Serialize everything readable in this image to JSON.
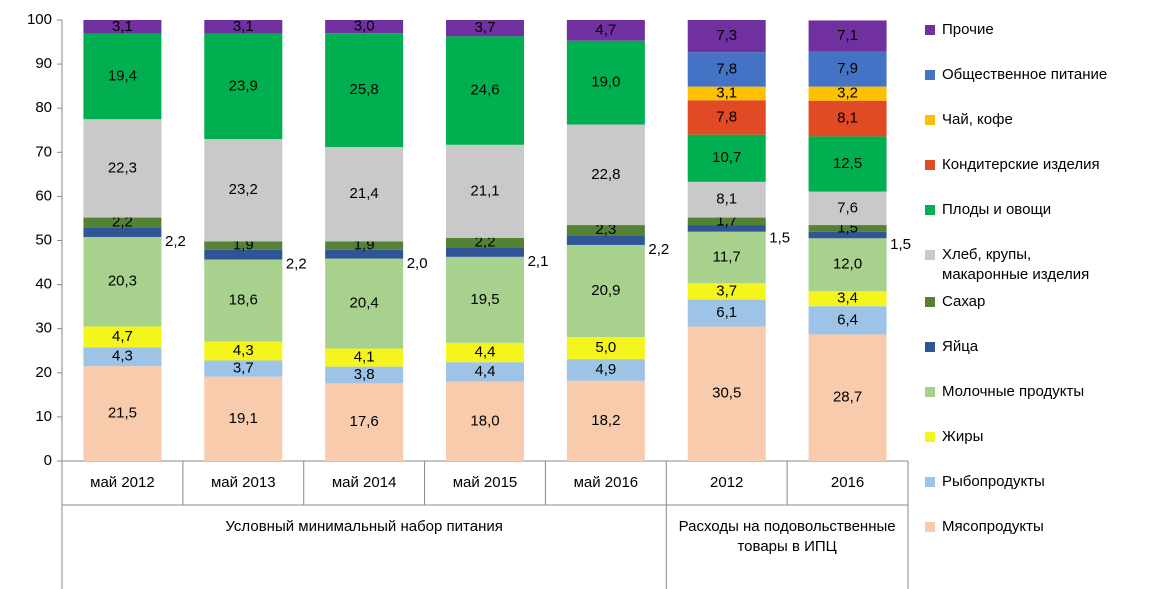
{
  "chart_data": {
    "type": "stacked-bar",
    "categories": [
      "май 2012",
      "май 2013",
      "май 2014",
      "май 2015",
      "май 2016",
      "2012",
      "2016"
    ],
    "groups": [
      "Условный минимальный набор питания",
      "Расходы на подовольственные товары в ИПЦ"
    ],
    "ylim": [
      0,
      100
    ],
    "yticks": [
      0,
      10,
      20,
      30,
      40,
      50,
      60,
      70,
      80,
      90,
      100
    ],
    "series": [
      {
        "name": "Мясопродукты",
        "color": "#f8cbad",
        "values": [
          21.5,
          19.1,
          17.6,
          18.0,
          18.2,
          30.5,
          28.7
        ],
        "value_labels": [
          "21,5",
          "19,1",
          "17,6",
          "18,0",
          "18,2",
          "30,5",
          "28,7"
        ]
      },
      {
        "name": "Рыбопродукты",
        "color": "#9dc3e6",
        "values": [
          4.3,
          3.7,
          3.8,
          4.4,
          4.9,
          6.1,
          6.4
        ],
        "value_labels": [
          "4,3",
          "3,7",
          "3,8",
          "4,4",
          "4,9",
          "6,1",
          "6,4"
        ]
      },
      {
        "name": "Жиры",
        "color": "#f5f51e",
        "values": [
          4.7,
          4.3,
          4.1,
          4.4,
          5.0,
          3.7,
          3.4
        ],
        "value_labels": [
          "4,7",
          "4,3",
          "4,1",
          "4,4",
          "5,0",
          "3,7",
          "3,4"
        ]
      },
      {
        "name": "Молочные продукты",
        "color": "#a9d18e",
        "values": [
          20.3,
          18.6,
          20.4,
          19.5,
          20.9,
          11.7,
          12.0
        ],
        "value_labels": [
          "20,3",
          "18,6",
          "20,4",
          "19,5",
          "20,9",
          "11,7",
          "12,0"
        ]
      },
      {
        "name": "Яйца",
        "color": "#2f5597",
        "values": [
          2.2,
          2.2,
          2.0,
          2.1,
          2.2,
          1.5,
          1.5
        ],
        "value_labels": [
          "2,2",
          "2,2",
          "2,0",
          "2,1",
          "2,2",
          "1,5",
          "1,5"
        ]
      },
      {
        "name": "Сахар",
        "color": "#548235",
        "values": [
          2.2,
          1.9,
          1.9,
          2.2,
          2.3,
          1.7,
          1.5
        ],
        "value_labels": [
          "2,2",
          "1,9",
          "1,9",
          "2,2",
          "2,3",
          "1,7",
          "1,5"
        ]
      },
      {
        "name": "Хлеб, крупы, макаронные изделия",
        "color": "#c9c9c9",
        "values": [
          22.3,
          23.2,
          21.4,
          21.1,
          22.8,
          8.1,
          7.6
        ],
        "value_labels": [
          "22,3",
          "23,2",
          "21,4",
          "21,1",
          "22,8",
          "8,1",
          "7,6"
        ]
      },
      {
        "name": "Плоды и овощи",
        "color": "#00b050",
        "values": [
          19.4,
          23.9,
          25.8,
          24.6,
          19.0,
          10.7,
          12.5
        ],
        "value_labels": [
          "19,4",
          "23,9",
          "25,8",
          "24,6",
          "19,0",
          "10,7",
          "12,5"
        ]
      },
      {
        "name": "Кондитерские изделия",
        "color": "#e04b25",
        "values": [
          null,
          null,
          null,
          null,
          null,
          7.8,
          8.1
        ],
        "value_labels": [
          null,
          null,
          null,
          null,
          null,
          "7,8",
          "8,1"
        ]
      },
      {
        "name": "Чай, кофе",
        "color": "#ffc000",
        "values": [
          null,
          null,
          null,
          null,
          null,
          3.1,
          3.2
        ],
        "value_labels": [
          null,
          null,
          null,
          null,
          null,
          "3,1",
          "3,2"
        ]
      },
      {
        "name": "Общественное питание",
        "color": "#4472c4",
        "values": [
          null,
          null,
          null,
          null,
          null,
          7.8,
          7.9
        ],
        "value_labels": [
          null,
          null,
          null,
          null,
          null,
          "7,8",
          "7,9"
        ]
      },
      {
        "name": "Прочие",
        "color": "#7030a0",
        "values": [
          3.1,
          3.1,
          3.0,
          3.7,
          4.7,
          7.3,
          7.1
        ],
        "value_labels": [
          "3,1",
          "3,1",
          "3,0",
          "3,7",
          "4,7",
          "7,3",
          "7,1"
        ]
      }
    ]
  }
}
